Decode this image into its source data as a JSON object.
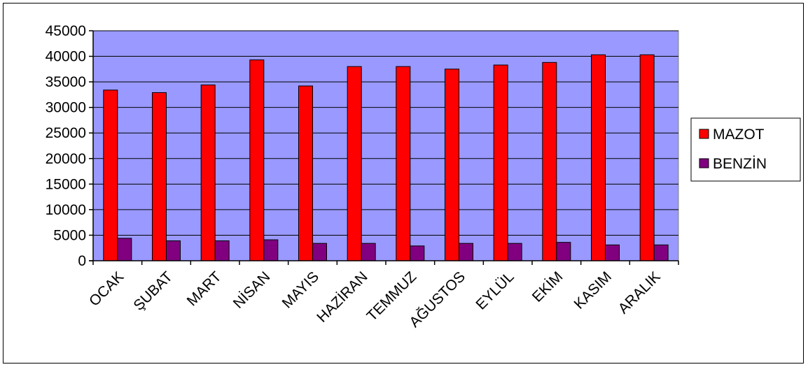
{
  "chart_data": {
    "type": "bar",
    "title": "",
    "xlabel": "",
    "ylabel": "",
    "categories": [
      "OCAK",
      "ŞUBAT",
      "MART",
      "NİSAN",
      "MAYIS",
      "HAZİRAN",
      "TEMMUZ",
      "AĞUSTOS",
      "EYLÜL",
      "EKİM",
      "KASIM",
      "ARALIK"
    ],
    "series": [
      {
        "name": "MAZOT",
        "color": "#ff0000",
        "values": [
          33400,
          32900,
          34400,
          39300,
          34200,
          38000,
          38000,
          37500,
          38300,
          38800,
          40300,
          40300
        ]
      },
      {
        "name": "BENZİN",
        "color": "#800080",
        "values": [
          4400,
          3900,
          3900,
          4100,
          3400,
          3400,
          2900,
          3400,
          3400,
          3600,
          3100,
          3100
        ]
      }
    ],
    "ylim": [
      0,
      45000
    ],
    "yticks": [
      0,
      5000,
      10000,
      15000,
      20000,
      25000,
      30000,
      35000,
      40000,
      45000
    ],
    "grid": true,
    "plot_background": "#9999ff",
    "legend_position": "right"
  }
}
